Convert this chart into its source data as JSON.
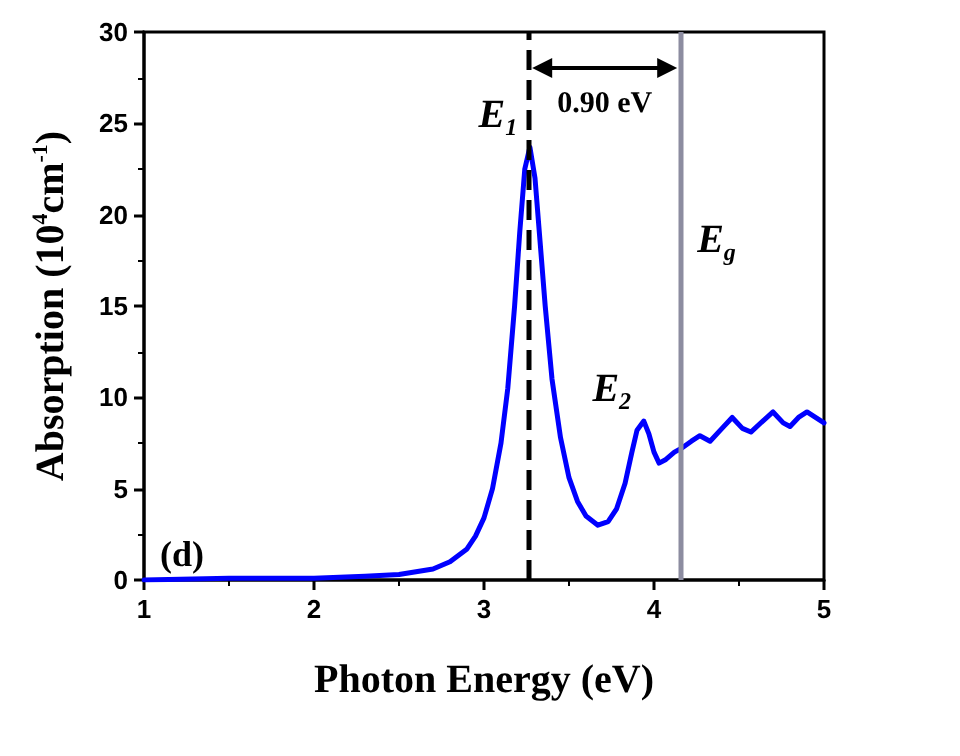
{
  "chart_data": {
    "type": "line",
    "xlabel": "Photon Energy (eV)",
    "ylabel": "Absorption (10$^{4}$cm$^{-1}$)",
    "xlim": [
      1,
      5
    ],
    "xticks": [
      1,
      2,
      3,
      4,
      5
    ],
    "ylim": [
      0,
      30
    ],
    "yticks": [
      0,
      5,
      10,
      15,
      20,
      25,
      30
    ],
    "grid": false,
    "marker": "none",
    "line_style": "solid",
    "series": [
      {
        "color": "#0000ff",
        "x": [
          1,
          1.5,
          2,
          2.3,
          2.5,
          2.7,
          2.8,
          2.9,
          2.95,
          3.0,
          3.05,
          3.1,
          3.14,
          3.18,
          3.21,
          3.24,
          3.27,
          3.3,
          3.33,
          3.36,
          3.4,
          3.45,
          3.5,
          3.55,
          3.6,
          3.67,
          3.73,
          3.78,
          3.83,
          3.87,
          3.9,
          3.94,
          3.97,
          4.0,
          4.03,
          4.07,
          4.12,
          4.16,
          4.22,
          4.27,
          4.33,
          4.4,
          4.46,
          4.52,
          4.57,
          4.64,
          4.7,
          4.76,
          4.8,
          4.85,
          4.9,
          4.95,
          5.0
        ],
        "values": [
          0,
          0.1,
          0.1,
          0.2,
          0.3,
          0.6,
          1.0,
          1.7,
          2.4,
          3.4,
          5,
          7.5,
          10.5,
          15,
          19,
          22.5,
          23.7,
          22,
          18.5,
          15,
          11,
          7.8,
          5.6,
          4.3,
          3.5,
          3.0,
          3.2,
          3.9,
          5.3,
          7,
          8.2,
          8.7,
          8.0,
          7.0,
          6.4,
          6.6,
          7.0,
          7.2,
          7.6,
          7.9,
          7.6,
          8.3,
          8.9,
          8.3,
          8.1,
          8.7,
          9.2,
          8.6,
          8.4,
          8.9,
          9.2,
          8.9,
          8.6
        ]
      }
    ],
    "ref_lines": [
      {
        "axis": "x",
        "value": 3.26,
        "color": "#000000",
        "line_style": "dashed"
      },
      {
        "axis": "x",
        "value": 4.16,
        "color": "#8c8ca0",
        "line_style": "solid"
      }
    ],
    "annotations": [
      {
        "text": "E$_{1}$",
        "x": 3.27,
        "y": 23.7
      },
      "0.90 eV",
      {
        "text": "E$_{g}$",
        "x": 4.16,
        "y": 18.6
      },
      {
        "text": "E$_{2}$",
        "x": 3.94,
        "y": 8.7
      },
      "(d)"
    ]
  }
}
